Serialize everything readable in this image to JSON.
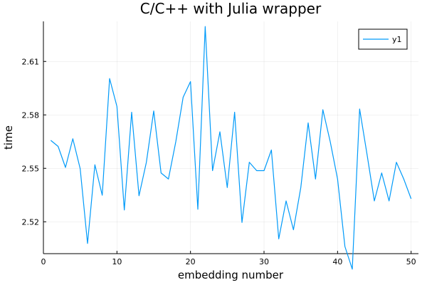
{
  "chart_data": {
    "type": "line",
    "title": "C/C++ with Julia wrapper",
    "xlabel": "embedding number",
    "ylabel": "time",
    "xlim": [
      0,
      51
    ],
    "ylim": [
      2.5021,
      2.6325
    ],
    "xticks": [
      0,
      10,
      20,
      30,
      40,
      50
    ],
    "yticks": [
      2.52,
      2.55,
      2.58,
      2.61
    ],
    "ytick_labels": [
      "2.52",
      "2.55",
      "2.58",
      "2.61"
    ],
    "grid": true,
    "legend_position": "top-right",
    "series": [
      {
        "name": "y1",
        "color": "#009af9",
        "x": [
          1,
          2,
          3,
          4,
          5,
          6,
          7,
          8,
          9,
          10,
          11,
          12,
          13,
          14,
          15,
          16,
          17,
          18,
          19,
          20,
          21,
          22,
          23,
          24,
          25,
          26,
          27,
          28,
          29,
          30,
          31,
          32,
          33,
          34,
          35,
          36,
          37,
          38,
          39,
          40,
          41,
          42,
          43,
          44,
          45,
          46,
          47,
          48,
          49,
          50
        ],
        "y": [
          2.5657,
          2.5623,
          2.5505,
          2.5666,
          2.5498,
          2.5078,
          2.552,
          2.5349,
          2.6004,
          2.5847,
          2.5266,
          2.5815,
          2.5346,
          2.5534,
          2.5822,
          2.5474,
          2.544,
          2.5649,
          2.5899,
          2.5987,
          2.527,
          2.6296,
          2.5487,
          2.5705,
          2.5392,
          2.5815,
          2.5196,
          2.5534,
          2.5487,
          2.5487,
          2.5603,
          2.5104,
          2.5317,
          2.5155,
          2.5392,
          2.5755,
          2.544,
          2.5829,
          2.565,
          2.544,
          2.5061,
          2.4934,
          2.5833,
          2.558,
          2.5317,
          2.5474,
          2.5317,
          2.5534,
          2.544,
          2.5329
        ]
      }
    ]
  }
}
